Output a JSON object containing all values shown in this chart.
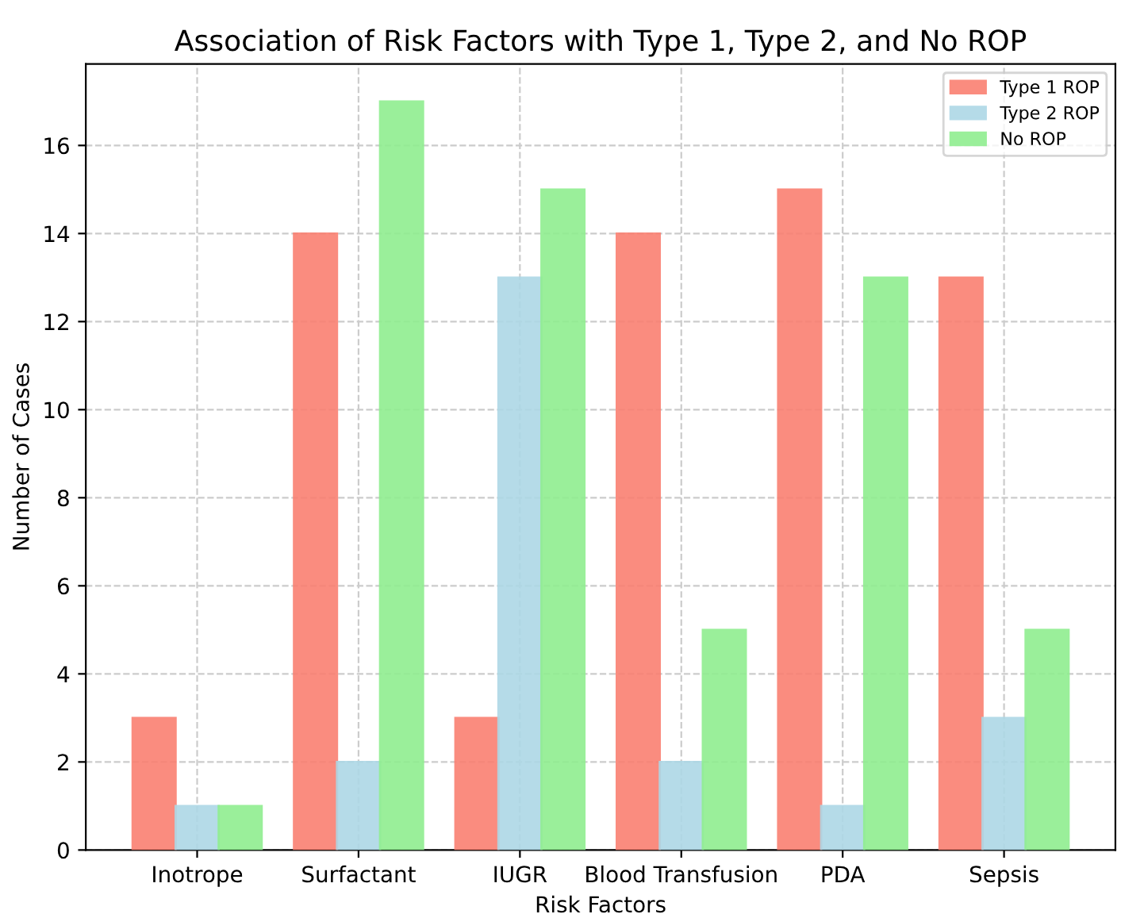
{
  "chart_data": {
    "type": "bar",
    "title": "Association of Risk Factors with Type 1, Type 2, and No ROP",
    "xlabel": "Risk Factors",
    "ylabel": "Number of Cases",
    "categories": [
      "Inotrope",
      "Surfactant",
      "IUGR",
      "Blood Transfusion",
      "PDA",
      "Sepsis"
    ],
    "series": [
      {
        "name": "Type 1 ROP",
        "color": "#fa8072",
        "values": [
          3,
          14,
          3,
          14,
          15,
          13
        ]
      },
      {
        "name": "Type 2 ROP",
        "color": "#add8e6",
        "values": [
          1,
          2,
          13,
          2,
          1,
          3
        ]
      },
      {
        "name": "No ROP",
        "color": "#90ee90",
        "values": [
          1,
          17,
          15,
          5,
          13,
          5
        ]
      }
    ],
    "ylim": [
      0,
      17.85
    ],
    "yticks": [
      0,
      2,
      4,
      6,
      8,
      10,
      12,
      14,
      16
    ],
    "grid": true,
    "legend": "top right"
  }
}
